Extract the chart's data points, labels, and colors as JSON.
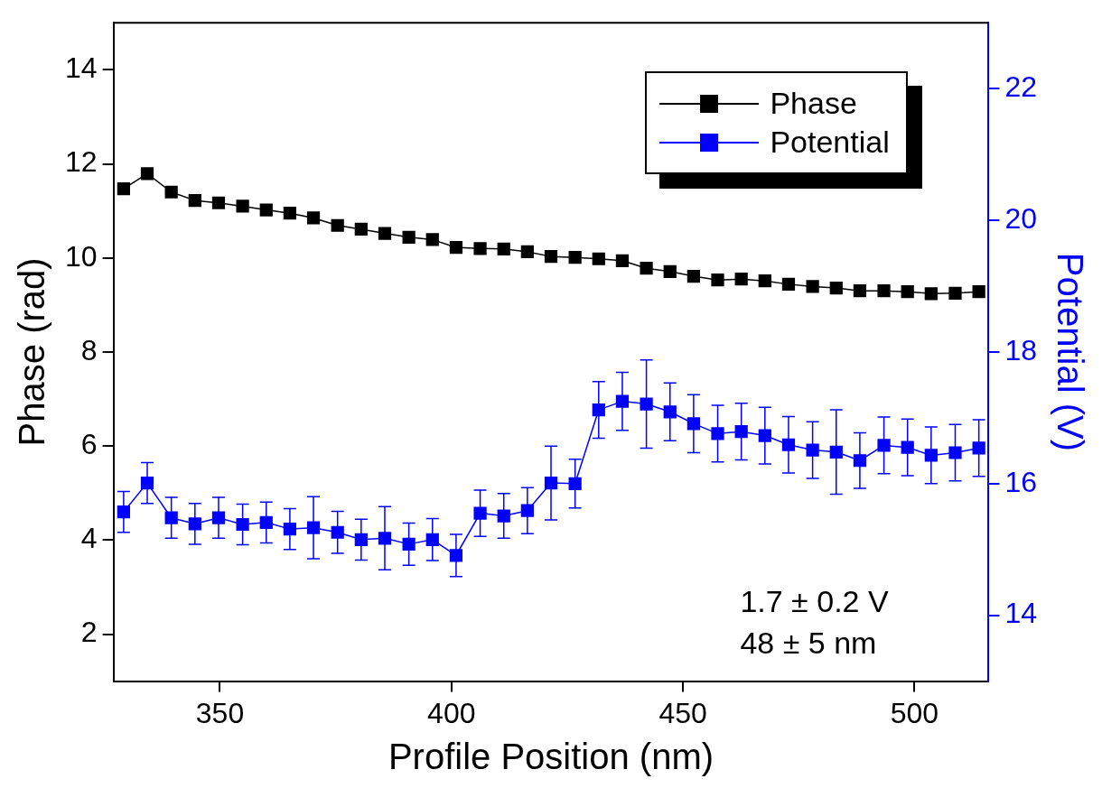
{
  "chart_data": {
    "type": "line",
    "xlabel": "Profile Position (nm)",
    "ylabel": "Phase (rad)",
    "y2label": "Potential (V)",
    "x": [
      329.2,
      334.3,
      339.5,
      344.6,
      349.7,
      354.9,
      360.0,
      365.1,
      370.2,
      375.4,
      380.5,
      385.6,
      390.8,
      395.9,
      401.0,
      406.2,
      411.3,
      416.4,
      421.5,
      426.7,
      431.8,
      436.9,
      442.1,
      447.2,
      452.3,
      457.5,
      462.6,
      467.7,
      472.8,
      478.0,
      483.1,
      488.2,
      493.4,
      498.5,
      503.6,
      508.8,
      513.9
    ],
    "series": [
      {
        "name": "Phase",
        "color": "#000000",
        "values": [
          11.47,
          11.79,
          11.4,
          11.22,
          11.17,
          11.1,
          11.02,
          10.95,
          10.85,
          10.69,
          10.61,
          10.52,
          10.44,
          10.39,
          10.22,
          10.2,
          10.19,
          10.13,
          10.03,
          10.01,
          9.98,
          9.94,
          9.78,
          9.71,
          9.61,
          9.53,
          9.55,
          9.51,
          9.44,
          9.39,
          9.36,
          9.3,
          9.3,
          9.28,
          9.24,
          9.25,
          9.28
        ]
      },
      {
        "name": "Potential",
        "color": "#0000ff",
        "axis": "y2",
        "values": [
          15.57,
          16.01,
          15.48,
          15.39,
          15.48,
          15.38,
          15.41,
          15.31,
          15.33,
          15.26,
          15.15,
          15.17,
          15.08,
          15.15,
          14.91,
          15.55,
          15.51,
          15.59,
          16.01,
          16.0,
          17.12,
          17.25,
          17.21,
          17.09,
          16.91,
          16.76,
          16.79,
          16.73,
          16.59,
          16.51,
          16.48,
          16.35,
          16.58,
          16.55,
          16.43,
          16.47,
          16.54
        ],
        "errors": [
          0.31,
          0.31,
          0.31,
          0.31,
          0.31,
          0.31,
          0.31,
          0.31,
          0.47,
          0.32,
          0.31,
          0.48,
          0.32,
          0.32,
          0.32,
          0.35,
          0.34,
          0.35,
          0.56,
          0.37,
          0.43,
          0.44,
          0.67,
          0.44,
          0.44,
          0.43,
          0.43,
          0.43,
          0.43,
          0.43,
          0.64,
          0.42,
          0.43,
          0.43,
          0.43,
          0.43,
          0.43
        ]
      }
    ],
    "xlim": [
      327,
      516
    ],
    "xticks": [
      350,
      400,
      450,
      500
    ],
    "ylim": [
      1,
      15
    ],
    "yticks": [
      2,
      4,
      6,
      8,
      10,
      12,
      14
    ],
    "y2lim": [
      13,
      23
    ],
    "y2ticks": [
      14,
      16,
      18,
      20,
      22
    ],
    "annotations": [
      "1.7 ± 0.2 V",
      "48 ± 5 nm"
    ],
    "legend": "top right",
    "grid": false,
    "marker": "square",
    "line_style": "solid"
  }
}
